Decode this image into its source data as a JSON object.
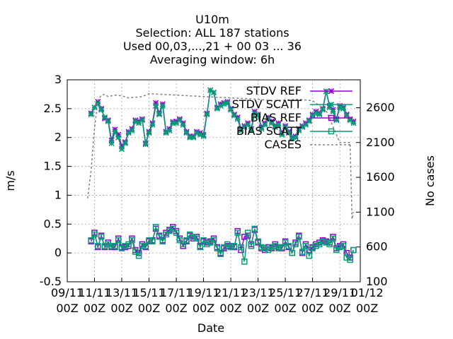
{
  "chart_data": {
    "type": "line",
    "title_lines": [
      "U10m",
      "Selection: ALL    187 stations",
      "Used  00,03,...,21  + 00 03 ... 36",
      "Averaging window:  6h"
    ],
    "xlabel": "Date",
    "ylabel": "m/s",
    "y2label": "No cases",
    "ylim": [
      -0.5,
      3
    ],
    "y2lim": [
      100,
      3000
    ],
    "xlim": [
      0,
      21.5
    ],
    "yticks": [
      "-0.5",
      "0",
      "0.5",
      "1",
      "1.5",
      "2",
      "2.5",
      "3"
    ],
    "y2ticks": [
      "100",
      "600",
      "1100",
      "1600",
      "2100",
      "2600"
    ],
    "xticks": [
      {
        "v": 0,
        "l1": "09/11",
        "l2": "00Z"
      },
      {
        "v": 2,
        "l1": "11/11",
        "l2": "00Z"
      },
      {
        "v": 4,
        "l1": "13/11",
        "l2": "00Z"
      },
      {
        "v": 6,
        "l1": "15/11",
        "l2": "00Z"
      },
      {
        "v": 8,
        "l1": "17/11",
        "l2": "00Z"
      },
      {
        "v": 10,
        "l1": "19/11",
        "l2": "00Z"
      },
      {
        "v": 12,
        "l1": "21/11",
        "l2": "00Z"
      },
      {
        "v": 14,
        "l1": "23/11",
        "l2": "00Z"
      },
      {
        "v": 16,
        "l1": "25/11",
        "l2": "00Z"
      },
      {
        "v": 18,
        "l1": "27/11",
        "l2": "00Z"
      },
      {
        "v": 20,
        "l1": "29/11",
        "l2": "00Z"
      },
      {
        "v": 22,
        "l1": "01/12",
        "l2": "00Z"
      }
    ],
    "grid": true,
    "legend_position": "top-right",
    "colors": {
      "ref": "#9400d3",
      "scatt": "#009e73",
      "cases": "#808080"
    },
    "series": [
      {
        "name": "STDV REF",
        "axis": "y1",
        "marker": "x",
        "x": [
          1.75,
          2,
          2.25,
          2.5,
          2.75,
          3,
          3.25,
          3.5,
          3.75,
          4,
          4.25,
          4.5,
          4.75,
          5,
          5.25,
          5.5,
          5.75,
          6,
          6.25,
          6.5,
          6.75,
          7,
          7.25,
          7.5,
          7.75,
          8,
          8.25,
          8.5,
          8.75,
          9,
          9.25,
          9.5,
          9.75,
          10,
          10.25,
          10.5,
          10.75,
          11,
          11.25,
          11.5,
          11.75,
          12,
          12.25,
          12.5,
          12.75,
          13,
          13.25,
          13.5,
          13.75,
          14,
          14.25,
          14.5,
          14.75,
          15,
          15.25,
          15.5,
          15.75,
          16,
          16.25,
          16.5,
          16.75,
          17,
          17.25,
          17.5,
          17.75,
          18,
          18.25,
          18.5,
          18.75,
          19,
          19.25,
          19.5,
          19.75,
          20,
          20.25,
          20.5,
          20.75,
          21
        ],
        "y": [
          2.42,
          2.52,
          2.62,
          2.5,
          2.33,
          2.3,
          1.95,
          2.14,
          2.05,
          1.85,
          1.92,
          2.1,
          2.15,
          2.3,
          2.28,
          2.32,
          1.9,
          2.1,
          2.25,
          2.6,
          2.42,
          2.58,
          2.1,
          2.15,
          2.27,
          2.28,
          2.32,
          2.25,
          2.1,
          2.02,
          2.02,
          2.1,
          2.08,
          2.05,
          2.42,
          2.82,
          2.78,
          2.52,
          2.58,
          2.6,
          2.62,
          2.5,
          2.4,
          2.35,
          2.15,
          2.2,
          2.25,
          2.15,
          2.45,
          2.4,
          2.18,
          2.25,
          2.35,
          2.28,
          2.2,
          2.25,
          2.08,
          2.2,
          2.1,
          2.0,
          2.02,
          2.15,
          2.2,
          2.25,
          2.3,
          2.4,
          2.45,
          2.42,
          2.5,
          2.8,
          2.55,
          2.48,
          2.32,
          2.55,
          2.52,
          2.4,
          2.32,
          2.28
        ]
      },
      {
        "name": "STDV SCATT",
        "axis": "y1",
        "marker": "x",
        "x": [
          1.75,
          2,
          2.25,
          2.5,
          2.75,
          3,
          3.25,
          3.5,
          3.75,
          4,
          4.25,
          4.5,
          4.75,
          5,
          5.25,
          5.5,
          5.75,
          6,
          6.25,
          6.5,
          6.75,
          7,
          7.25,
          7.5,
          7.75,
          8,
          8.25,
          8.5,
          8.75,
          9,
          9.25,
          9.5,
          9.75,
          10,
          10.25,
          10.5,
          10.75,
          11,
          11.25,
          11.5,
          11.75,
          12,
          12.25,
          12.5,
          12.75,
          13,
          13.25,
          13.5,
          13.75,
          14,
          14.25,
          14.5,
          14.75,
          15,
          15.25,
          15.5,
          15.75,
          16,
          16.25,
          16.5,
          16.75,
          17,
          17.25,
          17.5,
          17.75,
          18,
          18.25,
          18.5,
          18.75,
          19,
          19.25,
          19.5,
          19.75,
          20,
          20.25,
          20.5,
          20.75,
          21
        ],
        "y": [
          2.4,
          2.52,
          2.58,
          2.48,
          2.35,
          2.28,
          1.9,
          2.1,
          2.0,
          1.8,
          1.9,
          2.08,
          2.12,
          2.28,
          2.25,
          2.3,
          1.88,
          2.08,
          2.22,
          2.55,
          2.4,
          2.55,
          2.08,
          2.12,
          2.25,
          2.25,
          2.3,
          2.22,
          2.08,
          2.0,
          2.0,
          2.08,
          2.05,
          2.02,
          2.4,
          2.82,
          2.78,
          2.5,
          2.55,
          2.58,
          2.6,
          2.48,
          2.38,
          2.32,
          2.12,
          2.18,
          2.22,
          2.12,
          2.42,
          2.38,
          2.15,
          2.22,
          2.32,
          2.25,
          2.18,
          2.22,
          2.05,
          2.18,
          2.08,
          1.98,
          2.0,
          2.12,
          2.18,
          2.22,
          2.28,
          2.38,
          2.42,
          2.4,
          2.48,
          2.8,
          2.52,
          2.45,
          2.3,
          2.52,
          2.5,
          2.38,
          2.3,
          2.25
        ]
      },
      {
        "name": "BIAS REF",
        "axis": "y1",
        "marker": "square",
        "x": [
          1.75,
          2,
          2.25,
          2.5,
          2.75,
          3,
          3.25,
          3.5,
          3.75,
          4,
          4.25,
          4.5,
          4.75,
          5,
          5.25,
          5.5,
          5.75,
          6,
          6.25,
          6.5,
          6.75,
          7,
          7.25,
          7.5,
          7.75,
          8,
          8.25,
          8.5,
          8.75,
          9,
          9.25,
          9.5,
          9.75,
          10,
          10.25,
          10.5,
          10.75,
          11,
          11.25,
          11.5,
          11.75,
          12,
          12.25,
          12.5,
          12.75,
          13,
          13.25,
          13.5,
          13.75,
          14,
          14.25,
          14.5,
          14.75,
          15,
          15.25,
          15.5,
          15.75,
          16,
          16.25,
          16.5,
          16.75,
          17,
          17.25,
          17.5,
          17.75,
          18,
          18.25,
          18.5,
          18.75,
          19,
          19.25,
          19.5,
          19.75,
          20,
          20.25,
          20.5,
          20.75,
          21
        ],
        "y": [
          0.2,
          0.35,
          0.1,
          0.3,
          0.1,
          0.18,
          0.1,
          0.1,
          0.25,
          0.1,
          0.1,
          0.12,
          0.25,
          0.05,
          0.0,
          0.15,
          0.1,
          0.2,
          0.22,
          0.42,
          0.3,
          0.22,
          0.35,
          0.4,
          0.45,
          0.38,
          0.25,
          0.12,
          0.2,
          0.3,
          0.25,
          0.28,
          0.12,
          0.2,
          0.18,
          0.2,
          0.25,
          0.1,
          0.0,
          0.08,
          0.12,
          0.12,
          0.1,
          0.38,
          0.05,
          0.28,
          0.3,
          0.15,
          0.4,
          0.18,
          0.08,
          0.05,
          0.1,
          0.08,
          0.15,
          0.1,
          0.08,
          0.2,
          0.1,
          0.0,
          0.18,
          0.3,
          0.0,
          0.15,
          0.05,
          0.1,
          0.15,
          0.18,
          0.22,
          0.2,
          0.18,
          0.28,
          0.08,
          0.12,
          0.15,
          0.0,
          -0.08,
          0.05
        ]
      },
      {
        "name": "BIAS SCATT",
        "axis": "y1",
        "marker": "square",
        "x": [
          1.75,
          2,
          2.25,
          2.5,
          2.75,
          3,
          3.25,
          3.5,
          3.75,
          4,
          4.25,
          4.5,
          4.75,
          5,
          5.25,
          5.5,
          5.75,
          6,
          6.25,
          6.5,
          6.75,
          7,
          7.25,
          7.5,
          7.75,
          8,
          8.25,
          8.5,
          8.75,
          9,
          9.25,
          9.5,
          9.75,
          10,
          10.25,
          10.5,
          10.75,
          11,
          11.25,
          11.5,
          11.75,
          12,
          12.25,
          12.5,
          12.75,
          13,
          13.25,
          13.5,
          13.75,
          14,
          14.25,
          14.5,
          14.75,
          15,
          15.25,
          15.5,
          15.75,
          16,
          16.25,
          16.5,
          16.75,
          17,
          17.25,
          17.5,
          17.75,
          18,
          18.25,
          18.5,
          18.75,
          19,
          19.25,
          19.5,
          19.75,
          20,
          20.25,
          20.5,
          20.75,
          21
        ],
        "y": [
          0.22,
          0.32,
          0.12,
          0.28,
          0.12,
          0.15,
          0.12,
          0.12,
          0.22,
          0.08,
          0.12,
          0.15,
          0.22,
          0.02,
          -0.05,
          0.12,
          0.12,
          0.22,
          0.2,
          0.45,
          0.28,
          0.2,
          0.32,
          0.38,
          0.42,
          0.35,
          0.22,
          0.15,
          0.22,
          0.32,
          0.28,
          0.25,
          0.1,
          0.22,
          0.15,
          0.18,
          0.22,
          0.08,
          -0.02,
          0.1,
          0.15,
          0.1,
          0.12,
          0.35,
          0.1,
          -0.15,
          0.35,
          0.12,
          0.42,
          0.2,
          0.1,
          0.08,
          0.05,
          0.1,
          0.12,
          0.08,
          0.1,
          0.18,
          0.12,
          0.0,
          0.15,
          0.28,
          0.02,
          0.12,
          -0.05,
          0.08,
          0.12,
          0.15,
          0.2,
          0.18,
          0.15,
          0.25,
          0.05,
          0.1,
          0.12,
          -0.08,
          -0.12,
          0.05
        ]
      },
      {
        "name": "CASES",
        "axis": "y2",
        "marker": "none",
        "dash": true,
        "x": [
          1.5,
          1.75,
          2,
          2.25,
          2.5,
          2.75,
          3,
          3.5,
          4,
          4.5,
          5,
          5.5,
          6,
          7,
          8,
          9,
          10,
          11,
          12,
          13,
          14,
          15,
          16,
          17,
          18,
          19,
          20,
          20.5,
          20.75,
          20.9,
          21
        ],
        "y": [
          1300,
          1700,
          2300,
          2700,
          2780,
          2790,
          2760,
          2780,
          2770,
          2740,
          2750,
          2760,
          2800,
          2790,
          2780,
          2770,
          2760,
          2750,
          2740,
          2730,
          2720,
          2700,
          2710,
          2720,
          2700,
          2560,
          2100,
          2100,
          2100,
          1000,
          1100
        ]
      }
    ]
  }
}
